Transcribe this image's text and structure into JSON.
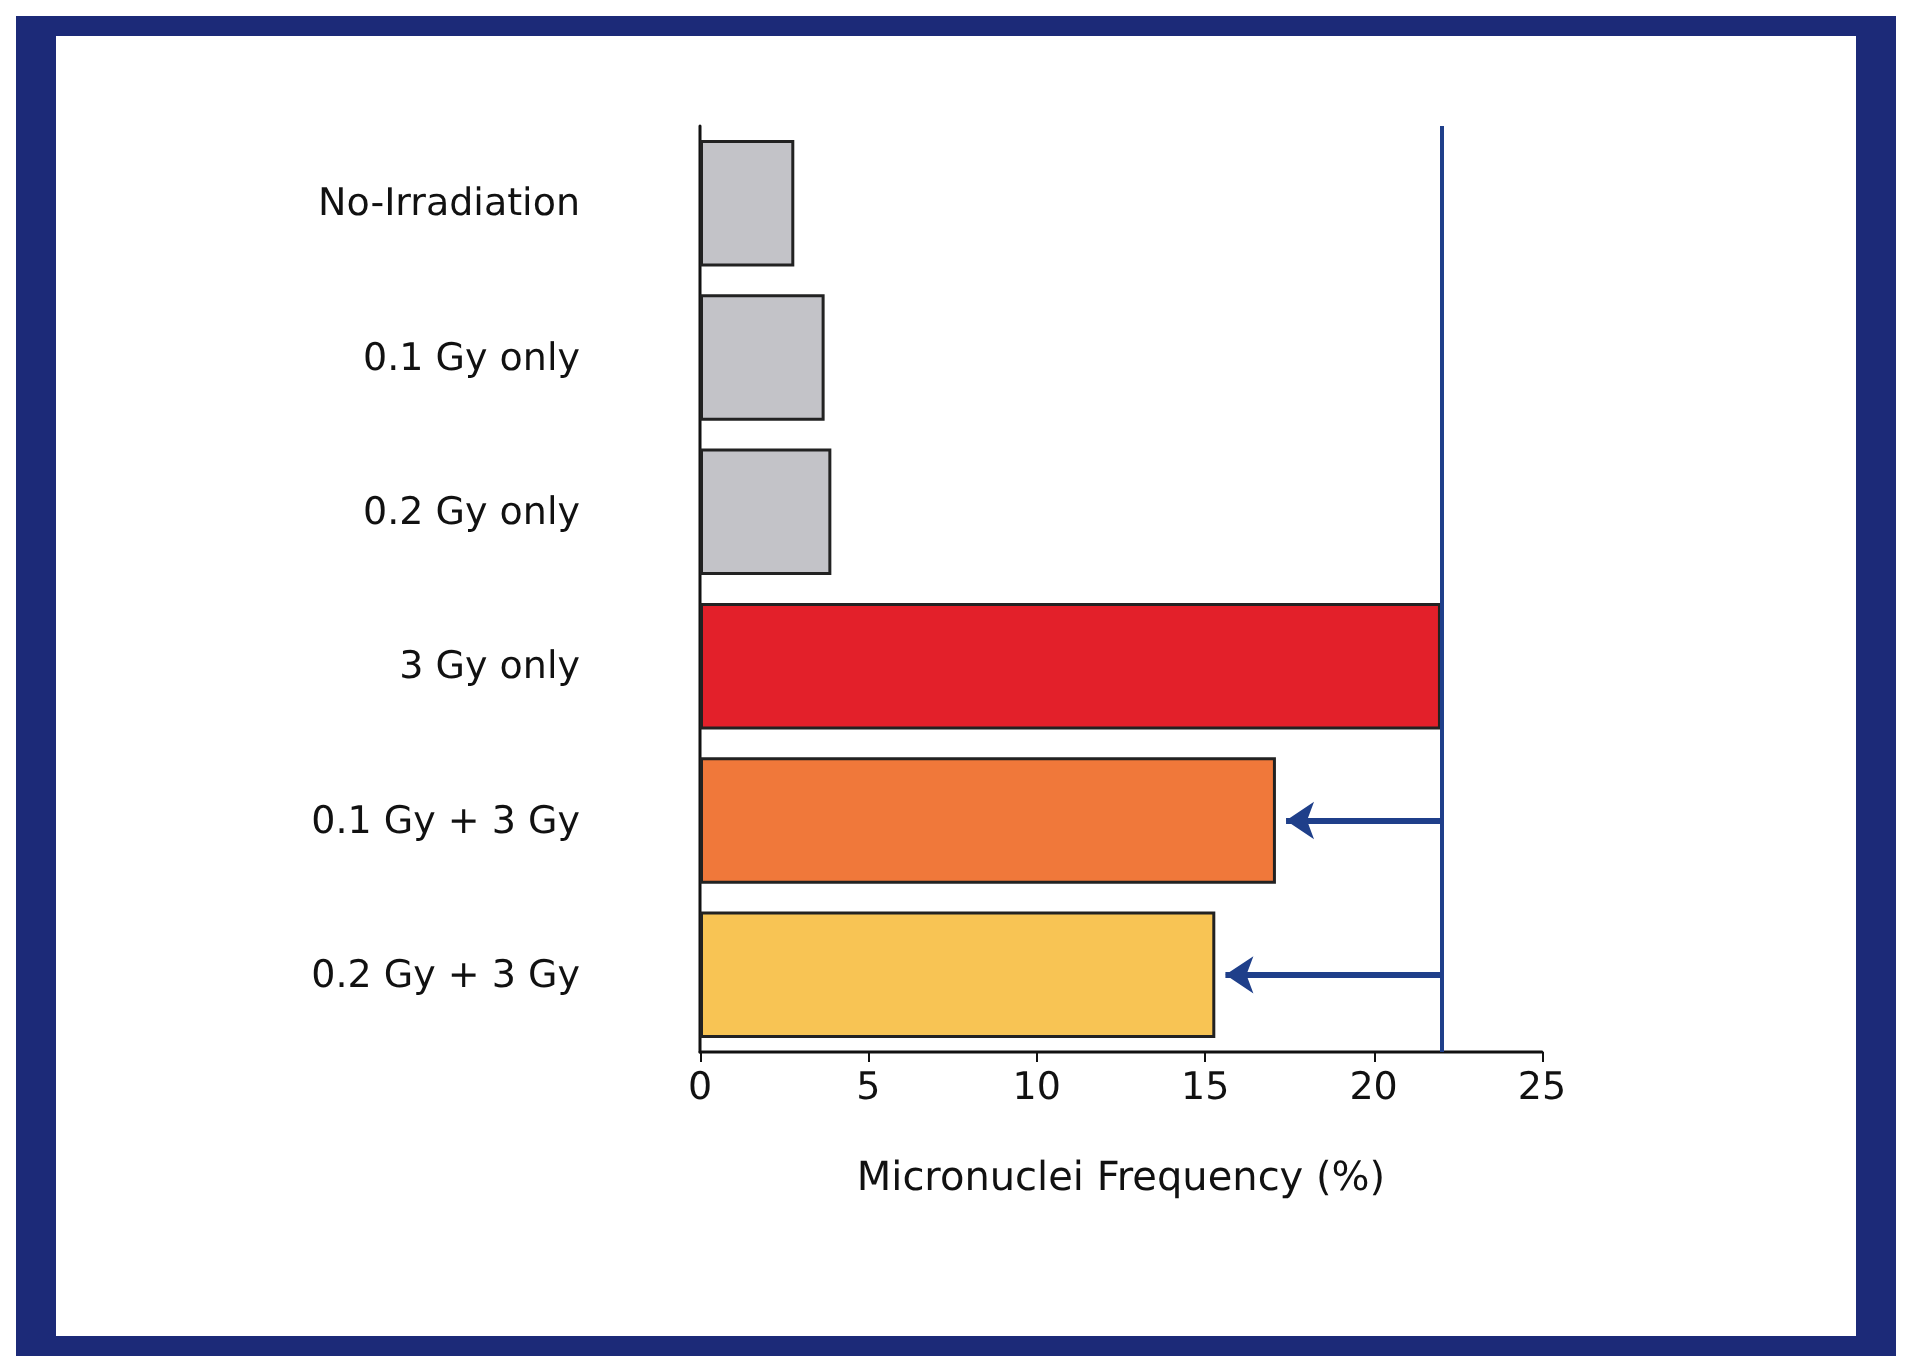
{
  "chart_data": {
    "type": "bar",
    "orientation": "horizontal",
    "categories": [
      "No-Irradiation",
      "0.1 Gy only",
      "0.2 Gy only",
      "3 Gy only",
      "0.1 Gy + 3 Gy",
      "0.2 Gy + 3 Gy"
    ],
    "values": [
      2.8,
      3.7,
      3.9,
      22,
      17.1,
      15.3
    ],
    "colors": [
      "#c3c3c8",
      "#c3c3c8",
      "#c3c3c8",
      "#e3202a",
      "#f0783a",
      "#f8c454"
    ],
    "xlabel": "Micronuclei Frequency (%)",
    "xlim": [
      0,
      25
    ],
    "xticks": [
      0,
      5,
      10,
      15,
      20,
      25
    ],
    "grid": false,
    "ref_lines": [
      {
        "axis": "x",
        "value": 22,
        "color": "#1f3f8a"
      }
    ]
  }
}
